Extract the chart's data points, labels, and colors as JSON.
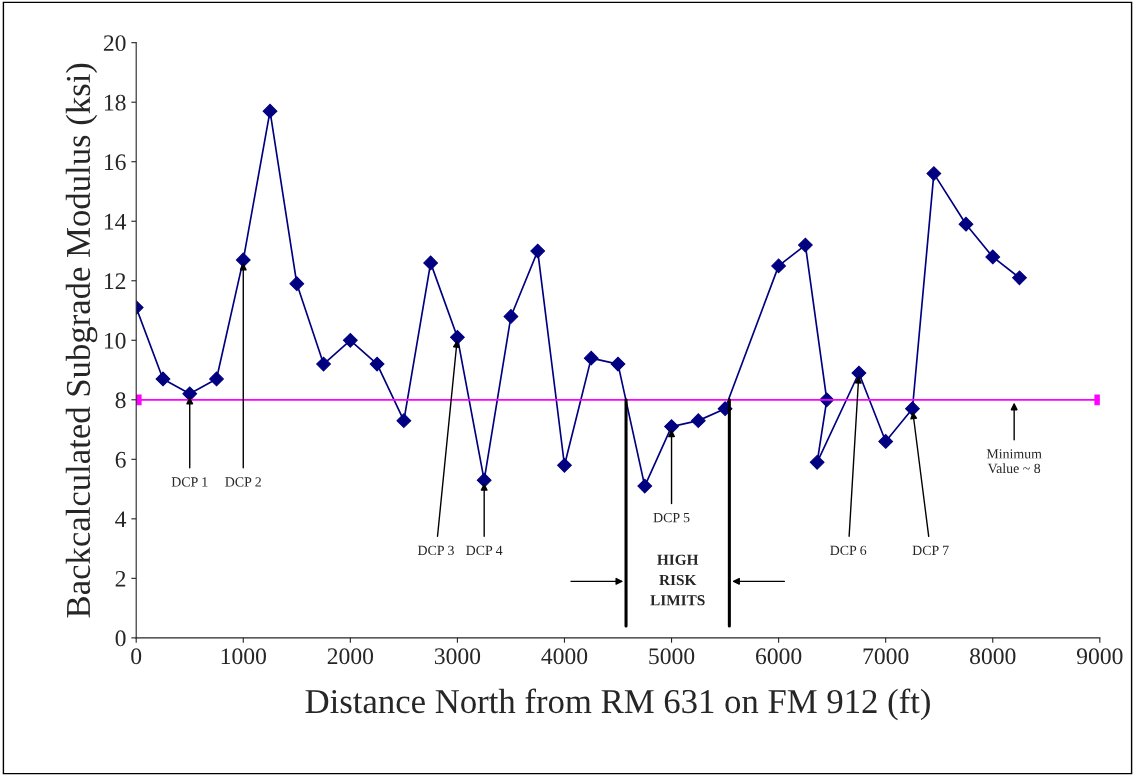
{
  "chart_data": {
    "type": "line",
    "xlabel": "Distance North from RM 631 on FM 912 (ft)",
    "ylabel": "Backcalculated Subgrade Modulus (ksi)",
    "series": [
      {
        "color": "#000080",
        "marker": "diamond",
        "x": [
          0,
          250,
          500,
          750,
          1000,
          1250,
          1500,
          1750,
          2000,
          2250,
          2500,
          2750,
          3000,
          3250,
          3500,
          3750,
          4000,
          4250,
          4500,
          4750,
          5000,
          5250,
          5500,
          6000,
          6250,
          6450,
          6360,
          6750,
          7000,
          7250,
          7450,
          7750,
          8000,
          8250
        ],
        "values": [
          11.1,
          8.7,
          8.2,
          8.7,
          12.7,
          17.7,
          11.9,
          9.2,
          10.0,
          9.2,
          7.3,
          12.6,
          10.1,
          5.3,
          10.8,
          13.0,
          5.8,
          9.4,
          9.2,
          5.1,
          7.1,
          7.3,
          7.7,
          12.5,
          13.2,
          8.0,
          5.9,
          8.9,
          6.6,
          7.7,
          15.6,
          13.9,
          12.8,
          12.1
        ]
      },
      {
        "color": "#ff00ff",
        "marker": "square",
        "x": [
          0,
          9000
        ],
        "values": [
          8,
          8
        ]
      }
    ],
    "ref_lines": [
      {
        "axis": "x",
        "value": 4575,
        "color": "#000000"
      },
      {
        "axis": "x",
        "value": 5540,
        "color": "#000000"
      }
    ],
    "annotations": [
      {
        "text": "DCP 1",
        "x": 500,
        "y": 8.2
      },
      {
        "text": "DCP 2",
        "x": 1000,
        "y": 12.7
      },
      {
        "text": "DCP 3",
        "x": 3000,
        "y": 10.1
      },
      {
        "text": "DCP 4",
        "x": 3250,
        "y": 5.3
      },
      {
        "text": "DCP 5",
        "x": 5000,
        "y": 7.1
      },
      {
        "text": "DCP 6",
        "x": 6750,
        "y": 8.9
      },
      {
        "text": "DCP 7",
        "x": 7250,
        "y": 7.7
      },
      {
        "text": "Minimum\nValue ~ 8",
        "x": 8200,
        "y": 8
      },
      "HIGH\nRISK\nLIMITS"
    ],
    "xlim": [
      0,
      9000
    ],
    "xticks": [
      0,
      1000,
      2000,
      3000,
      4000,
      5000,
      6000,
      7000,
      8000,
      9000
    ],
    "ylim": [
      0,
      20
    ],
    "yticks": [
      0,
      2,
      4,
      6,
      8,
      10,
      12,
      14,
      16,
      18,
      20
    ],
    "grid": false,
    "legend": false
  }
}
